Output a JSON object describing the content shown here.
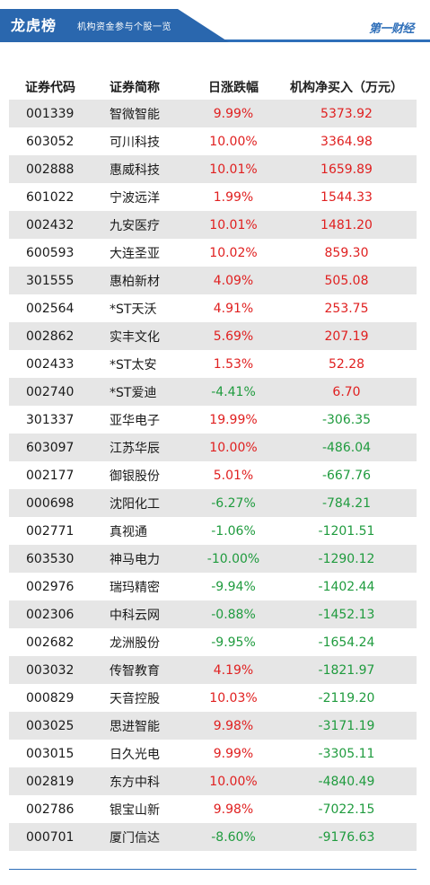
{
  "header": {
    "title": "龙虎榜",
    "subtitle": "机构资金参与个股一览",
    "brand": "第一财经",
    "colors": {
      "accent": "#2a67ae",
      "up": "#e02020",
      "down": "#1f9b3e",
      "row_shade": "#e6e6e6"
    }
  },
  "table": {
    "columns": [
      "证券代码",
      "证券简称",
      "日涨跌幅",
      "机构净买入（万元）"
    ],
    "rows": [
      {
        "code": "001339",
        "name": "智微智能",
        "change": "9.99%",
        "net": "5373.92"
      },
      {
        "code": "603052",
        "name": "可川科技",
        "change": "10.00%",
        "net": "3364.98"
      },
      {
        "code": "002888",
        "name": "惠威科技",
        "change": "10.01%",
        "net": "1659.89"
      },
      {
        "code": "601022",
        "name": "宁波远洋",
        "change": "1.99%",
        "net": "1544.33"
      },
      {
        "code": "002432",
        "name": "九安医疗",
        "change": "10.01%",
        "net": "1481.20"
      },
      {
        "code": "600593",
        "name": "大连圣亚",
        "change": "10.02%",
        "net": "859.30"
      },
      {
        "code": "301555",
        "name": "惠柏新材",
        "change": "4.09%",
        "net": "505.08"
      },
      {
        "code": "002564",
        "name": "*ST天沃",
        "change": "4.91%",
        "net": "253.75"
      },
      {
        "code": "002862",
        "name": "实丰文化",
        "change": "5.69%",
        "net": "207.19"
      },
      {
        "code": "002433",
        "name": "*ST太安",
        "change": "1.53%",
        "net": "52.28"
      },
      {
        "code": "002740",
        "name": "*ST爱迪",
        "change": "-4.41%",
        "net": "6.70"
      },
      {
        "code": "301337",
        "name": "亚华电子",
        "change": "19.99%",
        "net": "-306.35"
      },
      {
        "code": "603097",
        "name": "江苏华辰",
        "change": "10.00%",
        "net": "-486.04"
      },
      {
        "code": "002177",
        "name": "御银股份",
        "change": "5.01%",
        "net": "-667.76"
      },
      {
        "code": "000698",
        "name": "沈阳化工",
        "change": "-6.27%",
        "net": "-784.21"
      },
      {
        "code": "002771",
        "name": "真视通",
        "change": "-1.06%",
        "net": "-1201.51"
      },
      {
        "code": "603530",
        "name": "神马电力",
        "change": "-10.00%",
        "net": "-1290.12"
      },
      {
        "code": "002976",
        "name": "瑞玛精密",
        "change": "-9.94%",
        "net": "-1402.44"
      },
      {
        "code": "002306",
        "name": "中科云网",
        "change": "-0.88%",
        "net": "-1452.13"
      },
      {
        "code": "002682",
        "name": "龙洲股份",
        "change": "-9.95%",
        "net": "-1654.24"
      },
      {
        "code": "003032",
        "name": "传智教育",
        "change": "4.19%",
        "net": "-1821.97"
      },
      {
        "code": "000829",
        "name": "天音控股",
        "change": "10.03%",
        "net": "-2119.20"
      },
      {
        "code": "003025",
        "name": "思进智能",
        "change": "9.98%",
        "net": "-3171.19"
      },
      {
        "code": "003015",
        "name": "日久光电",
        "change": "9.99%",
        "net": "-3305.11"
      },
      {
        "code": "002819",
        "name": "东方中科",
        "change": "10.00%",
        "net": "-4840.49"
      },
      {
        "code": "002786",
        "name": "银宝山新",
        "change": "9.98%",
        "net": "-7022.15"
      },
      {
        "code": "000701",
        "name": "厦门信达",
        "change": "-8.60%",
        "net": "-9176.63"
      }
    ]
  }
}
